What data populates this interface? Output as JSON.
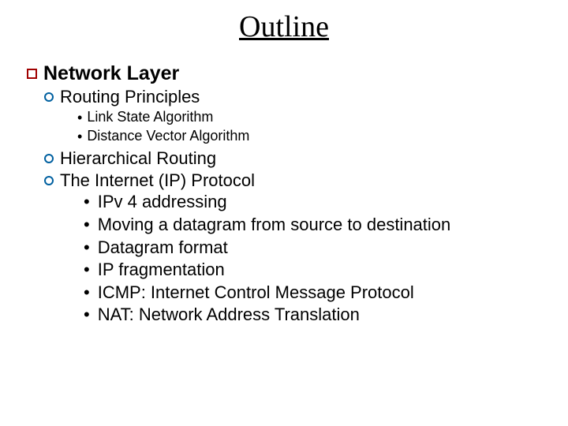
{
  "colors": {
    "background": "#ffffff",
    "text": "#000000",
    "square_border": "#a00000",
    "circle_border": "#0060a0"
  },
  "typography": {
    "family": "Comic Sans MS",
    "title_size_pt": 38,
    "level1_size_pt": 25,
    "level2_size_pt": 22,
    "level3_small_size_pt": 18,
    "level3_size_pt": 22
  },
  "title": "Outline",
  "level1": "Network Layer",
  "routing": {
    "label": "Routing Principles",
    "sub": [
      "Link State Algorithm",
      "Distance Vector Algorithm"
    ]
  },
  "hier": "Hierarchical Routing",
  "ip": {
    "label": "The Internet (IP) Protocol",
    "sub": [
      "IPv 4 addressing",
      "Moving a datagram from source to destination",
      "Datagram format",
      "IP fragmentation",
      "ICMP: Internet Control Message Protocol",
      "NAT: Network Address Translation"
    ]
  }
}
